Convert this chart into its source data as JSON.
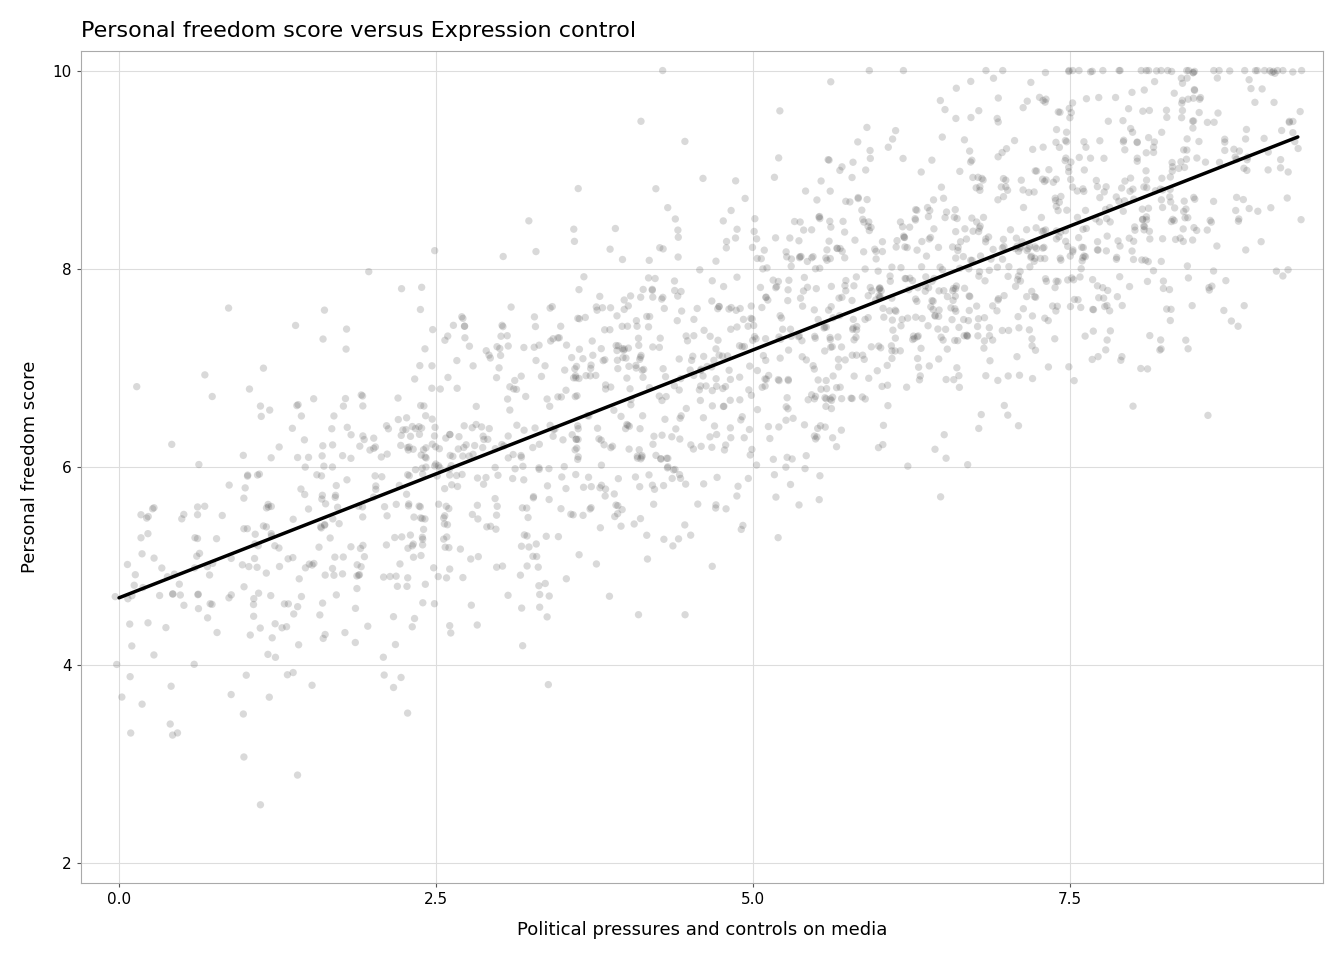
{
  "title": "Personal freedom score versus Expression control",
  "xlabel": "Political pressures and controls on media",
  "ylabel": "Personal freedom score",
  "xlim": [
    -0.3,
    9.5
  ],
  "ylim": [
    1.8,
    10.2
  ],
  "xticks": [
    0.0,
    2.5,
    5.0,
    7.5
  ],
  "yticks": [
    2,
    4,
    6,
    8,
    10
  ],
  "regression_intercept": 4.68,
  "regression_slope": 0.5,
  "point_color": "#555555",
  "point_alpha": 0.22,
  "point_size": 28,
  "line_color": "#000000",
  "line_width": 2.5,
  "bg_color": "#FFFFFF",
  "panel_border_color": "#AAAAAA",
  "grid_color": "#DDDDDD",
  "title_fontsize": 16,
  "axis_label_fontsize": 13,
  "tick_fontsize": 11,
  "seed": 42,
  "n_points": 1800,
  "x_min": 0.0,
  "x_max": 9.3,
  "y_min": 2.0,
  "y_max": 10.0,
  "noise_std": 0.85
}
